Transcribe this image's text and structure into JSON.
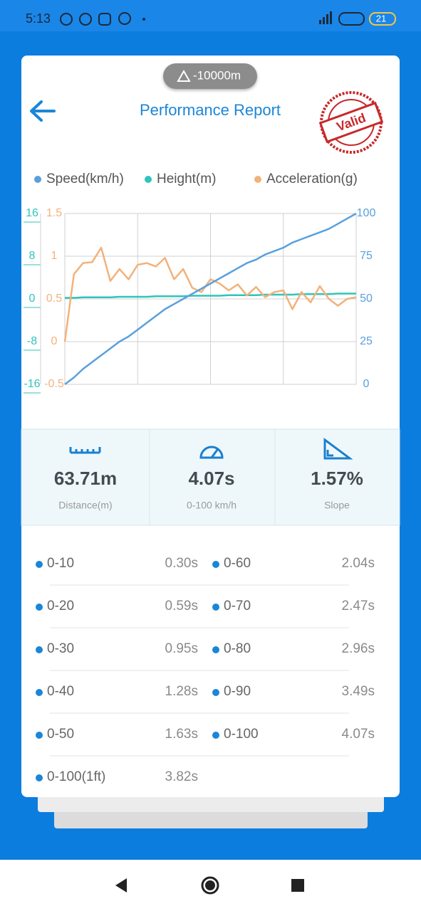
{
  "status_bar": {
    "time": "5:13",
    "battery": "21"
  },
  "header": {
    "altitude": "-10000m",
    "title": "Performance Report",
    "stamp": "Valid"
  },
  "chart_data": {
    "type": "line",
    "series": [
      {
        "name": "Speed(km/h)",
        "color": "#5aa0dc",
        "axis": "y2",
        "values": [
          0,
          4,
          9,
          13,
          17,
          21,
          25,
          28,
          32,
          36,
          40,
          44,
          47,
          50,
          53,
          56,
          59,
          62,
          65,
          68,
          71,
          73,
          76,
          78,
          80,
          83,
          85,
          87,
          89,
          91,
          94,
          97,
          100
        ]
      },
      {
        "name": "Height(m)",
        "color": "#2fc4bd",
        "axis": "y",
        "values": [
          0.2,
          0.2,
          0.3,
          0.3,
          0.3,
          0.3,
          0.4,
          0.4,
          0.4,
          0.4,
          0.5,
          0.5,
          0.5,
          0.5,
          0.6,
          0.6,
          0.6,
          0.6,
          0.7,
          0.7,
          0.7,
          0.7,
          0.8,
          0.8,
          0.8,
          0.8,
          0.9,
          0.9,
          0.9,
          0.9,
          1.0,
          1.0,
          1.0
        ]
      },
      {
        "name": "Acceleration(g)",
        "color": "#f2b27a",
        "axis": "y3",
        "values": [
          0.0,
          0.79,
          0.92,
          0.93,
          1.1,
          0.71,
          0.85,
          0.73,
          0.9,
          0.92,
          0.88,
          0.98,
          0.73,
          0.85,
          0.63,
          0.58,
          0.73,
          0.68,
          0.6,
          0.67,
          0.54,
          0.64,
          0.52,
          0.58,
          0.6,
          0.38,
          0.58,
          0.46,
          0.65,
          0.5,
          0.42,
          0.5,
          0.52
        ]
      }
    ],
    "ylim": [
      -16,
      16
    ],
    "yticks": [
      16,
      8,
      0,
      -8,
      -16
    ],
    "y3lim": [
      -0.5,
      1.5
    ],
    "y3ticks": [
      1.5,
      1,
      0.5,
      0,
      -0.5
    ],
    "y2lim": [
      0,
      100
    ],
    "y2ticks": [
      100,
      75,
      50,
      25,
      0
    ],
    "grid": true
  },
  "stats": [
    {
      "value": "63.71m",
      "label": "Distance(m)"
    },
    {
      "value": "4.07s",
      "label": "0-100 km/h"
    },
    {
      "value": "1.57%",
      "label": "Slope"
    }
  ],
  "times": [
    {
      "label": "0-10",
      "value": "0.30s"
    },
    {
      "label": "0-60",
      "value": "2.04s"
    },
    {
      "label": "0-20",
      "value": "0.59s"
    },
    {
      "label": "0-70",
      "value": "2.47s"
    },
    {
      "label": "0-30",
      "value": "0.95s"
    },
    {
      "label": "0-80",
      "value": "2.96s"
    },
    {
      "label": "0-40",
      "value": "1.28s"
    },
    {
      "label": "0-90",
      "value": "3.49s"
    },
    {
      "label": "0-50",
      "value": "1.63s"
    },
    {
      "label": "0-100",
      "value": "4.07s"
    },
    {
      "label": "0-100(1ft)",
      "value": "3.82s"
    }
  ]
}
